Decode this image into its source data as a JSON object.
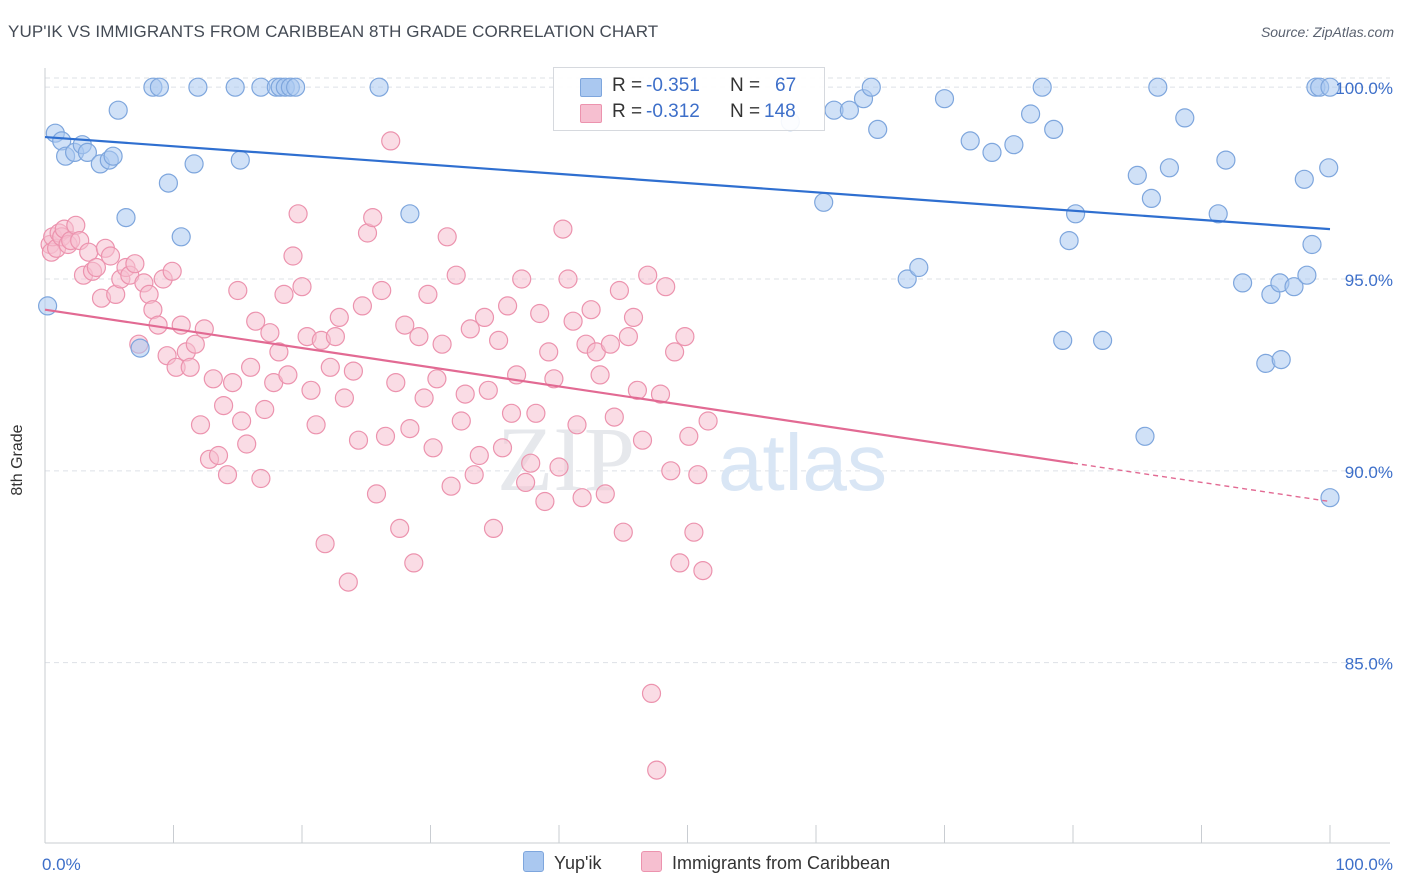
{
  "title": "YUP'IK VS IMMIGRANTS FROM CARIBBEAN 8TH GRADE CORRELATION CHART",
  "source": "Source: ZipAtlas.com",
  "watermark": {
    "zip": "ZIP",
    "atlas": "atlas"
  },
  "colors": {
    "blue_fill": "#aac8f0",
    "blue_stroke": "#7ea6dd",
    "blue_line": "#2f6fd0",
    "pink_fill": "#f6bfd0",
    "pink_stroke": "#ec93ae",
    "pink_line": "#e26a93",
    "tick_text": "#3d6fc9",
    "grid": "#dde1e6"
  },
  "stats": {
    "rows": [
      {
        "r_label": "R =",
        "r_value": "-0.351",
        "n_label": "N =",
        "n_value": "67"
      },
      {
        "r_label": "R =",
        "r_value": "-0.312",
        "n_label": "N =",
        "n_value": "148"
      }
    ]
  },
  "legend": {
    "series1": "Yup'ik",
    "series2": "Immigrants from Caribbean"
  },
  "chart_data": {
    "type": "scatter",
    "title": "YUP'IK VS IMMIGRANTS FROM CARIBBEAN 8TH GRADE CORRELATION CHART",
    "xlabel": "",
    "ylabel": "8th Grade",
    "xlim": [
      0,
      100
    ],
    "ylim": [
      80.3,
      100.5
    ],
    "x_tick_labels": [
      "0.0%",
      "100.0%"
    ],
    "y_ticks": [
      85,
      90,
      95,
      100
    ],
    "y_tick_labels": [
      "85.0%",
      "90.0%",
      "95.0%",
      "100.0%"
    ],
    "grid": true,
    "series": [
      {
        "name": "Yup'ik",
        "color": "blue",
        "trend": {
          "x": [
            0,
            100
          ],
          "y": [
            98.7,
            96.3
          ]
        },
        "points": [
          [
            0.2,
            94.3
          ],
          [
            0.8,
            98.8
          ],
          [
            1.3,
            98.6
          ],
          [
            1.6,
            98.2
          ],
          [
            2.3,
            98.3
          ],
          [
            2.9,
            98.5
          ],
          [
            3.3,
            98.3
          ],
          [
            4.3,
            98.0
          ],
          [
            5.0,
            98.1
          ],
          [
            5.3,
            98.2
          ],
          [
            5.7,
            99.4
          ],
          [
            6.3,
            96.6
          ],
          [
            7.4,
            93.2
          ],
          [
            8.4,
            100.0
          ],
          [
            8.9,
            100.0
          ],
          [
            9.6,
            97.5
          ],
          [
            10.6,
            96.1
          ],
          [
            11.6,
            98.0
          ],
          [
            11.9,
            100.0
          ],
          [
            14.8,
            100.0
          ],
          [
            15.2,
            98.1
          ],
          [
            16.8,
            100.0
          ],
          [
            18.0,
            100.0
          ],
          [
            18.3,
            100.0
          ],
          [
            18.7,
            100.0
          ],
          [
            19.1,
            100.0
          ],
          [
            19.5,
            100.0
          ],
          [
            26.0,
            100.0
          ],
          [
            28.4,
            96.7
          ],
          [
            58.0,
            99.1
          ],
          [
            60.6,
            97.0
          ],
          [
            61.4,
            99.4
          ],
          [
            62.6,
            99.4
          ],
          [
            63.7,
            99.7
          ],
          [
            64.3,
            100.0
          ],
          [
            64.8,
            98.9
          ],
          [
            67.1,
            95.0
          ],
          [
            68.0,
            95.3
          ],
          [
            70.0,
            99.7
          ],
          [
            72.0,
            98.6
          ],
          [
            73.7,
            98.3
          ],
          [
            75.4,
            98.5
          ],
          [
            76.7,
            99.3
          ],
          [
            77.6,
            100.0
          ],
          [
            78.5,
            98.9
          ],
          [
            79.2,
            93.4
          ],
          [
            79.7,
            96.0
          ],
          [
            80.2,
            96.7
          ],
          [
            82.3,
            93.4
          ],
          [
            85.0,
            97.7
          ],
          [
            85.6,
            90.9
          ],
          [
            86.1,
            97.1
          ],
          [
            86.6,
            100.0
          ],
          [
            87.5,
            97.9
          ],
          [
            88.7,
            99.2
          ],
          [
            91.3,
            96.7
          ],
          [
            91.9,
            98.1
          ],
          [
            93.2,
            94.9
          ],
          [
            95.0,
            92.8
          ],
          [
            95.4,
            94.6
          ],
          [
            96.1,
            94.9
          ],
          [
            96.2,
            92.9
          ],
          [
            97.2,
            94.8
          ],
          [
            98.0,
            97.6
          ],
          [
            98.2,
            95.1
          ],
          [
            98.6,
            95.9
          ],
          [
            98.9,
            100.0
          ],
          [
            99.2,
            100.0
          ],
          [
            99.9,
            97.9
          ],
          [
            100.0,
            100.0
          ],
          [
            100.0,
            89.3
          ]
        ]
      },
      {
        "name": "Immigrants from Caribbean",
        "color": "pink",
        "trend": {
          "x": [
            0,
            80
          ],
          "y": [
            94.2,
            90.2
          ]
        },
        "trend_dashed": {
          "x": [
            80,
            100
          ],
          "y": [
            90.2,
            89.2
          ]
        },
        "points": [
          [
            0.4,
            95.9
          ],
          [
            0.5,
            95.7
          ],
          [
            0.6,
            96.1
          ],
          [
            0.9,
            95.8
          ],
          [
            1.1,
            96.2
          ],
          [
            1.3,
            96.1
          ],
          [
            1.5,
            96.3
          ],
          [
            1.8,
            95.9
          ],
          [
            2.0,
            96.0
          ],
          [
            2.4,
            96.4
          ],
          [
            2.7,
            96.0
          ],
          [
            3.0,
            95.1
          ],
          [
            3.4,
            95.7
          ],
          [
            3.7,
            95.2
          ],
          [
            4.0,
            95.3
          ],
          [
            4.4,
            94.5
          ],
          [
            4.7,
            95.8
          ],
          [
            5.1,
            95.6
          ],
          [
            5.5,
            94.6
          ],
          [
            5.9,
            95.0
          ],
          [
            6.3,
            95.3
          ],
          [
            6.6,
            95.1
          ],
          [
            7.0,
            95.4
          ],
          [
            7.3,
            93.3
          ],
          [
            7.7,
            94.9
          ],
          [
            8.1,
            94.6
          ],
          [
            8.4,
            94.2
          ],
          [
            8.8,
            93.8
          ],
          [
            9.2,
            95.0
          ],
          [
            9.5,
            93.0
          ],
          [
            9.9,
            95.2
          ],
          [
            10.2,
            92.7
          ],
          [
            10.6,
            93.8
          ],
          [
            11.0,
            93.1
          ],
          [
            11.3,
            92.7
          ],
          [
            11.7,
            93.3
          ],
          [
            12.1,
            91.2
          ],
          [
            12.4,
            93.7
          ],
          [
            12.8,
            90.3
          ],
          [
            13.1,
            92.4
          ],
          [
            13.5,
            90.4
          ],
          [
            13.9,
            91.7
          ],
          [
            14.2,
            89.9
          ],
          [
            14.6,
            92.3
          ],
          [
            15.0,
            94.7
          ],
          [
            15.3,
            91.3
          ],
          [
            15.7,
            90.7
          ],
          [
            16.0,
            92.7
          ],
          [
            16.4,
            93.9
          ],
          [
            16.8,
            89.8
          ],
          [
            17.1,
            91.6
          ],
          [
            17.5,
            93.6
          ],
          [
            17.8,
            92.3
          ],
          [
            18.2,
            93.1
          ],
          [
            18.6,
            94.6
          ],
          [
            18.9,
            92.5
          ],
          [
            19.3,
            95.6
          ],
          [
            19.7,
            96.7
          ],
          [
            20.0,
            94.8
          ],
          [
            20.4,
            93.5
          ],
          [
            20.7,
            92.1
          ],
          [
            21.1,
            91.2
          ],
          [
            21.5,
            93.4
          ],
          [
            21.8,
            88.1
          ],
          [
            22.2,
            92.7
          ],
          [
            22.6,
            93.5
          ],
          [
            22.9,
            94.0
          ],
          [
            23.3,
            91.9
          ],
          [
            23.6,
            87.1
          ],
          [
            24.0,
            92.6
          ],
          [
            24.4,
            90.8
          ],
          [
            24.7,
            94.3
          ],
          [
            25.1,
            96.2
          ],
          [
            25.5,
            96.6
          ],
          [
            25.8,
            89.4
          ],
          [
            26.2,
            94.7
          ],
          [
            26.5,
            90.9
          ],
          [
            26.9,
            98.6
          ],
          [
            27.3,
            92.3
          ],
          [
            27.6,
            88.5
          ],
          [
            28.0,
            93.8
          ],
          [
            28.4,
            91.1
          ],
          [
            28.7,
            87.6
          ],
          [
            29.1,
            93.5
          ],
          [
            29.5,
            91.9
          ],
          [
            29.8,
            94.6
          ],
          [
            30.2,
            90.6
          ],
          [
            30.5,
            92.4
          ],
          [
            30.9,
            93.3
          ],
          [
            31.3,
            96.1
          ],
          [
            31.6,
            89.6
          ],
          [
            32.0,
            95.1
          ],
          [
            32.4,
            91.3
          ],
          [
            32.7,
            92.0
          ],
          [
            33.1,
            93.7
          ],
          [
            33.4,
            89.9
          ],
          [
            33.8,
            90.4
          ],
          [
            34.2,
            94.0
          ],
          [
            34.5,
            92.1
          ],
          [
            34.9,
            88.5
          ],
          [
            35.3,
            93.4
          ],
          [
            35.6,
            90.6
          ],
          [
            36.0,
            94.3
          ],
          [
            36.3,
            91.5
          ],
          [
            36.7,
            92.5
          ],
          [
            37.1,
            95.0
          ],
          [
            37.4,
            89.7
          ],
          [
            37.8,
            90.2
          ],
          [
            38.2,
            91.5
          ],
          [
            38.5,
            94.1
          ],
          [
            38.9,
            89.2
          ],
          [
            39.2,
            93.1
          ],
          [
            39.6,
            92.4
          ],
          [
            40.0,
            90.1
          ],
          [
            40.3,
            96.3
          ],
          [
            40.7,
            95.0
          ],
          [
            41.1,
            93.9
          ],
          [
            41.4,
            91.2
          ],
          [
            41.8,
            89.3
          ],
          [
            42.1,
            93.3
          ],
          [
            42.5,
            94.2
          ],
          [
            42.9,
            93.1
          ],
          [
            43.2,
            92.5
          ],
          [
            43.6,
            89.4
          ],
          [
            44.0,
            93.3
          ],
          [
            44.3,
            91.4
          ],
          [
            44.7,
            94.7
          ],
          [
            45.0,
            88.4
          ],
          [
            45.4,
            93.5
          ],
          [
            45.8,
            94.0
          ],
          [
            46.1,
            92.1
          ],
          [
            46.5,
            90.8
          ],
          [
            46.9,
            95.1
          ],
          [
            47.2,
            84.2
          ],
          [
            47.6,
            82.2
          ],
          [
            47.9,
            92.0
          ],
          [
            48.3,
            94.8
          ],
          [
            48.7,
            90.0
          ],
          [
            49.0,
            93.1
          ],
          [
            49.4,
            87.6
          ],
          [
            49.8,
            93.5
          ],
          [
            50.1,
            90.9
          ],
          [
            50.5,
            88.4
          ],
          [
            50.8,
            89.9
          ],
          [
            51.2,
            87.4
          ],
          [
            51.6,
            91.3
          ]
        ]
      }
    ]
  }
}
